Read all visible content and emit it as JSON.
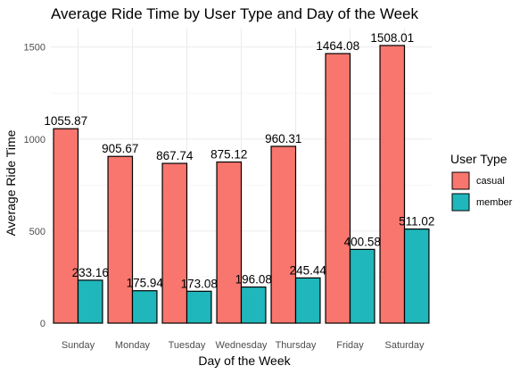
{
  "chart_data": {
    "type": "bar",
    "title": "Average Ride Time by User Type and Day of the Week",
    "xlabel": "Day of the Week",
    "ylabel": "Average Ride Time",
    "categories": [
      "Sunday",
      "Monday",
      "Tuesday",
      "Wednesday",
      "Thursday",
      "Friday",
      "Saturday"
    ],
    "series": [
      {
        "name": "casual",
        "color": "#F8766D",
        "values": [
          1055.87,
          905.67,
          867.74,
          875.12,
          960.31,
          1464.08,
          1508.01
        ],
        "labels": [
          "1055.87",
          "905.67",
          "867.74",
          "875.12",
          "960.31",
          "1464.08",
          "1508.01"
        ]
      },
      {
        "name": "member",
        "color": "#1FB7BB",
        "values": [
          233.16,
          175.94,
          173.08,
          196.08,
          245.44,
          400.58,
          511.02
        ],
        "labels": [
          "233.16",
          "175.94",
          "173.08",
          "196.08",
          "245.44",
          "400.58",
          "511.02"
        ]
      }
    ],
    "ylim": [
      0,
      1600
    ],
    "yticks": [
      0,
      500,
      1000,
      1500
    ],
    "ytick_labels": [
      "0",
      "500",
      "1000",
      "1500"
    ],
    "grid": true,
    "legend": {
      "title": "User Type",
      "position": "right"
    }
  }
}
